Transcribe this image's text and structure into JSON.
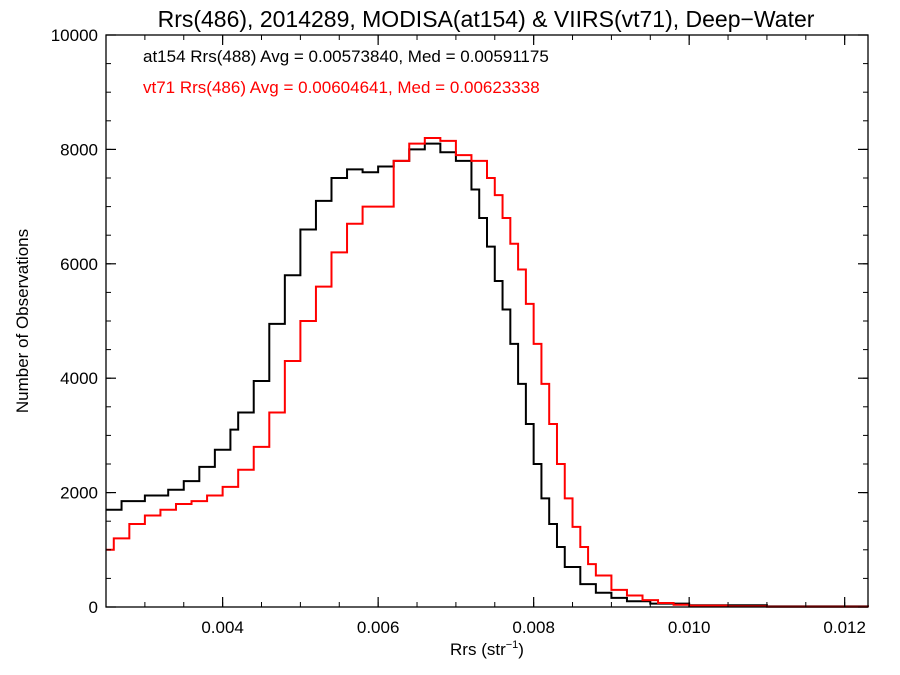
{
  "chart_data": {
    "type": "line",
    "title": "Rrs(486), 2014289, MODISA(at154) & VIIRS(vt71), Deep−Water",
    "xlabel": "Rrs (str",
    "xlabel_sup": "−1",
    "xlabel_end": ")",
    "ylabel": "Number of Observations",
    "xlim": [
      0.0025,
      0.0123
    ],
    "ylim": [
      0,
      10000
    ],
    "x_ticks": [
      0.004,
      0.006,
      0.008,
      0.01,
      0.012
    ],
    "x_tick_labels": [
      "0.004",
      "0.006",
      "0.008",
      "0.010",
      "0.012"
    ],
    "y_ticks": [
      0,
      2000,
      4000,
      6000,
      8000,
      10000
    ],
    "y_tick_labels": [
      "0",
      "2000",
      "4000",
      "6000",
      "8000",
      "10000"
    ],
    "grid": false,
    "legend_position": "top-left",
    "series": [
      {
        "name": "at154 Rrs(488) Avg = 0.00573840, Med = 0.00591175",
        "color": "#000000",
        "x": [
          0.0025,
          0.0027,
          0.003,
          0.0033,
          0.0035,
          0.0037,
          0.0039,
          0.0041,
          0.0042,
          0.0044,
          0.0046,
          0.0048,
          0.005,
          0.0052,
          0.0054,
          0.0056,
          0.0058,
          0.006,
          0.0062,
          0.0064,
          0.0066,
          0.0068,
          0.007,
          0.0072,
          0.0073,
          0.0074,
          0.0075,
          0.0076,
          0.0077,
          0.0078,
          0.0079,
          0.008,
          0.0081,
          0.0082,
          0.0083,
          0.0084,
          0.0086,
          0.0088,
          0.009,
          0.0092,
          0.0095,
          0.01,
          0.011,
          0.0123
        ],
        "values": [
          1700,
          1850,
          1950,
          2050,
          2200,
          2450,
          2750,
          3100,
          3400,
          3950,
          4950,
          5800,
          6600,
          7100,
          7500,
          7650,
          7600,
          7700,
          7800,
          8000,
          8100,
          7950,
          7800,
          7300,
          6800,
          6300,
          5700,
          5200,
          4600,
          3900,
          3200,
          2500,
          1900,
          1450,
          1050,
          700,
          400,
          250,
          160,
          100,
          60,
          30,
          10,
          0
        ]
      },
      {
        "name": "vt71 Rrs(486) Avg = 0.00604641, Med = 0.00623338",
        "color": "#ff0000",
        "x": [
          0.0025,
          0.0026,
          0.0028,
          0.003,
          0.0032,
          0.0034,
          0.0036,
          0.0038,
          0.004,
          0.0042,
          0.0044,
          0.0046,
          0.0048,
          0.005,
          0.0052,
          0.0054,
          0.0056,
          0.0058,
          0.006,
          0.0062,
          0.0064,
          0.0066,
          0.0068,
          0.007,
          0.0072,
          0.0074,
          0.0075,
          0.0076,
          0.0077,
          0.0078,
          0.0079,
          0.008,
          0.0081,
          0.0082,
          0.0083,
          0.0084,
          0.0085,
          0.0086,
          0.0087,
          0.0088,
          0.009,
          0.0092,
          0.0094,
          0.0096,
          0.0098,
          0.01,
          0.0105,
          0.011,
          0.0123
        ],
        "values": [
          1000,
          1200,
          1450,
          1600,
          1700,
          1800,
          1850,
          1950,
          2100,
          2400,
          2800,
          3400,
          4300,
          5000,
          5600,
          6200,
          6700,
          7000,
          7000,
          7800,
          8100,
          8200,
          8150,
          7900,
          7800,
          7500,
          7200,
          6800,
          6350,
          5900,
          5300,
          4600,
          3900,
          3200,
          2500,
          1900,
          1400,
          1050,
          750,
          550,
          300,
          200,
          120,
          70,
          40,
          25,
          10,
          5,
          0
        ]
      }
    ]
  }
}
